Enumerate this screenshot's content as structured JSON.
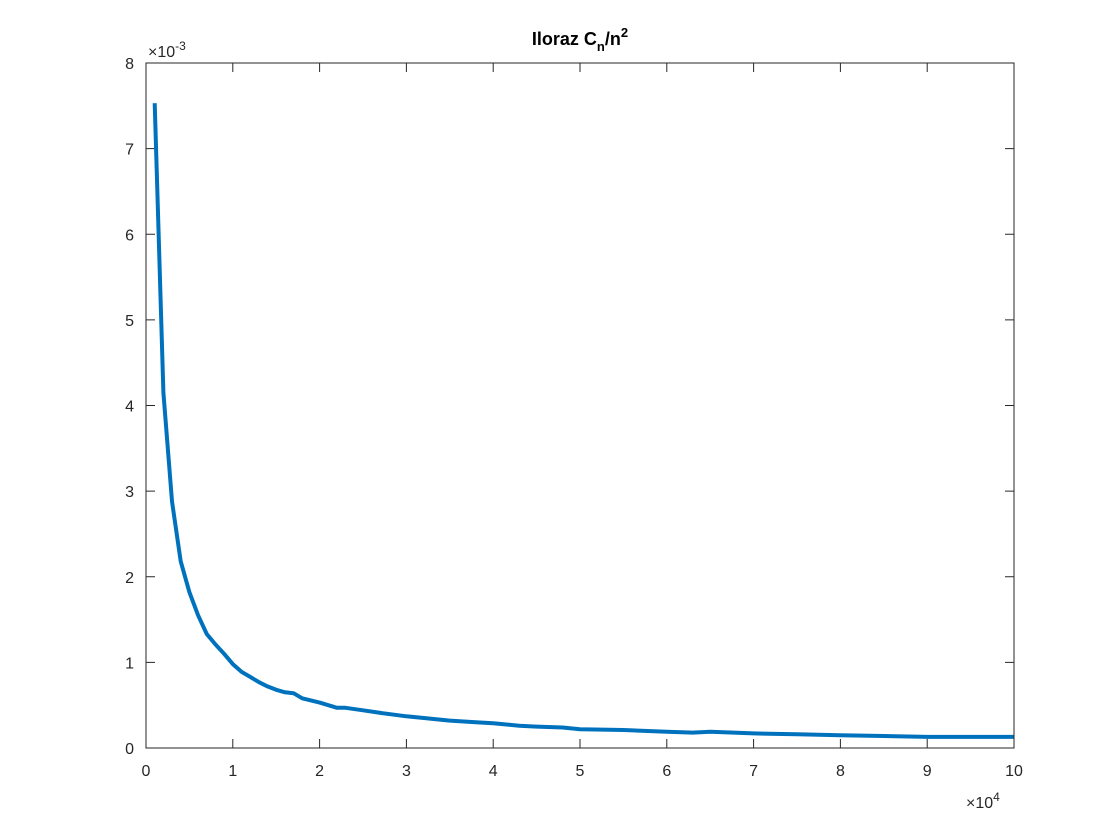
{
  "chart_data": {
    "type": "line",
    "title_main": "Iloraz C",
    "title_sub": "n",
    "title_mid": "/n",
    "title_sup": "2",
    "xlabel": "",
    "ylabel": "",
    "xlim": [
      0,
      100000
    ],
    "ylim": [
      0,
      0.008
    ],
    "x_ticks": [
      0,
      10000,
      20000,
      30000,
      40000,
      50000,
      60000,
      70000,
      80000,
      90000,
      100000
    ],
    "x_tick_labels": [
      "0",
      "1",
      "2",
      "3",
      "4",
      "5",
      "6",
      "7",
      "8",
      "9",
      "10"
    ],
    "y_ticks": [
      0,
      0.001,
      0.002,
      0.003,
      0.004,
      0.005,
      0.006,
      0.007,
      0.008
    ],
    "y_tick_labels": [
      "0",
      "1",
      "2",
      "3",
      "4",
      "5",
      "6",
      "7",
      "8"
    ],
    "x_exponent": {
      "prefix": "×10",
      "power": "4"
    },
    "y_exponent": {
      "prefix": "×10",
      "power": "-3"
    },
    "grid": false,
    "line_color": "#0072BD",
    "series": [
      {
        "x": [
          1000,
          2000,
          3000,
          4000,
          5000,
          6000,
          7000,
          8000,
          9000,
          10000,
          11000,
          12000,
          13000,
          14000,
          15000,
          16000,
          17000,
          18000,
          20000,
          22000,
          23000,
          25000,
          27000,
          30000,
          32000,
          35000,
          38000,
          40000,
          43000,
          45000,
          48000,
          50000,
          55000,
          60000,
          63000,
          65000,
          70000,
          75000,
          80000,
          85000,
          90000,
          95000,
          100000
        ],
        "y": [
          0.00753,
          0.00415,
          0.00288,
          0.00218,
          0.00182,
          0.00155,
          0.00133,
          0.00121,
          0.0011,
          0.00098,
          0.00089,
          0.00083,
          0.00077,
          0.00072,
          0.00068,
          0.00065,
          0.00064,
          0.00058,
          0.00053,
          0.00047,
          0.00047,
          0.00044,
          0.00041,
          0.00037,
          0.00035,
          0.00032,
          0.0003,
          0.00029,
          0.00026,
          0.00025,
          0.00024,
          0.00022,
          0.00021,
          0.00019,
          0.00018,
          0.00019,
          0.00017,
          0.00016,
          0.00015,
          0.00014,
          0.00013,
          0.00013,
          0.00013
        ]
      }
    ]
  }
}
